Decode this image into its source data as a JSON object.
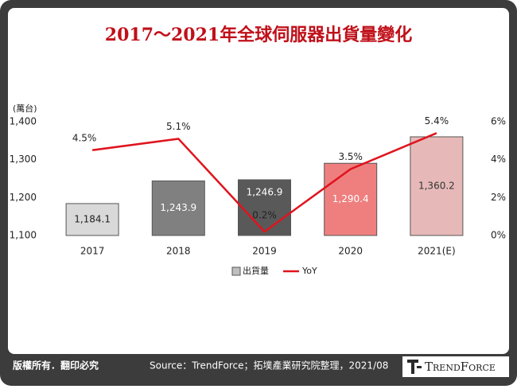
{
  "chart_data": {
    "type": "bar-line",
    "title": "2017～2021年全球伺服器出貨量變化",
    "y_label": "(萬台)",
    "categories": [
      "2017",
      "2018",
      "2019",
      "2020",
      "2021(E)"
    ],
    "series": [
      {
        "name": "出貨量",
        "type": "bar",
        "color": "#bfbfbf",
        "colors": [
          "#d9d9d9",
          "#808080",
          "#595959",
          "#ef7f7f",
          "#e6b9b8"
        ],
        "values": [
          1184.1,
          1243.9,
          1246.9,
          1290.4,
          1360.2
        ],
        "value_labels": [
          "1,184.1",
          "1,243.9",
          "1,246.9",
          "1,290.4",
          "1,360.2"
        ]
      },
      {
        "name": "YoY",
        "type": "line",
        "axis": "y2",
        "color": "#e0141e",
        "values": [
          4.5,
          5.1,
          0.2,
          3.5,
          5.4
        ],
        "value_labels": [
          "4.5%",
          "5.1%",
          "0.2%",
          "3.5%",
          "5.4%"
        ]
      }
    ],
    "ylim": [
      1100,
      1400
    ],
    "yticks": [
      {
        "value": 1100,
        "label": "1,100"
      },
      {
        "value": 1200,
        "label": "1,200"
      },
      {
        "value": 1300,
        "label": "1,300"
      },
      {
        "value": 1400,
        "label": "1,400"
      }
    ],
    "y2lim": [
      0,
      6
    ],
    "y2ticks": [
      {
        "value": 0,
        "label": "0%"
      },
      {
        "value": 2,
        "label": "2%"
      },
      {
        "value": 4,
        "label": "4%"
      },
      {
        "value": 6,
        "label": "6%"
      }
    ],
    "grid": false
  },
  "footer": {
    "copyright": "版權所有．翻印必究",
    "source": "Source：TrendForce；拓墣產業研究院整理，2021/08",
    "logo": "TrendForce"
  }
}
